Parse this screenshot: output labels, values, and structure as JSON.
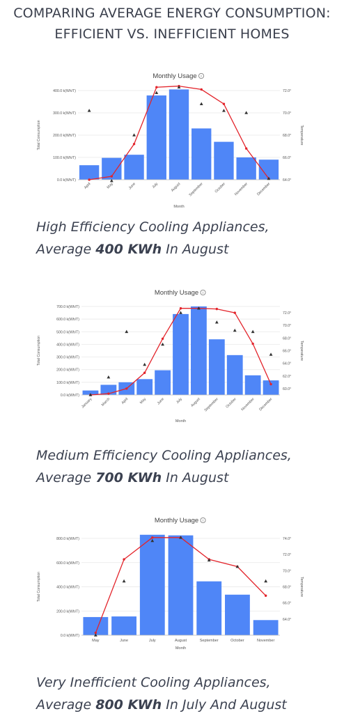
{
  "page": {
    "title_line1": "COMPARING AVERAGE ENERGY CONSUMPTION:",
    "title_line2": "EFFICIENT VS. INEFFICIENT HOMES"
  },
  "captions": [
    {
      "line1": "High Efficiency Cooling Appliances,",
      "pre": "Average ",
      "bold": "400 KWh",
      "post": " In August"
    },
    {
      "line1": "Medium Efficiency Cooling Appliances,",
      "pre": "Average ",
      "bold": "700 KWh",
      "post": " In August"
    },
    {
      "line1": "Very Inefficient Cooling Appliances,",
      "pre": "Average ",
      "bold": "800 KWh",
      "post": " In July And August"
    }
  ],
  "colors": {
    "bar": "#4f86f7",
    "line": "#e3242b",
    "marker": "#333333",
    "grid": "#e6e6e6"
  },
  "chart_data": [
    {
      "type": "bar",
      "title": "Monthly Usage",
      "info_icon": "info-icon",
      "xlabel": "Month",
      "ylabel": "Total Consumption",
      "y2label": "Temperature",
      "categories": [
        "April",
        "May",
        "June",
        "July",
        "August",
        "September",
        "October",
        "November",
        "December"
      ],
      "ylim": [
        0,
        400
      ],
      "yticks": [
        "0.0 k(Wh/T)",
        "100.0 k(Wh/T)",
        "200.0 k(Wh/T)",
        "300.0 k(Wh/T)",
        "400.0 k(Wh/T)"
      ],
      "y2lim": [
        64,
        72
      ],
      "y2ticks": [
        "64.0°",
        "66.0°",
        "68.0°",
        "70.0°",
        "72.0°"
      ],
      "values": [
        65,
        98,
        112,
        378,
        405,
        230,
        170,
        100,
        90
      ],
      "line_values": [
        64.0,
        64.3,
        67.2,
        72.3,
        72.4,
        72.1,
        70.8,
        66.8,
        64.1
      ],
      "marker_values": [
        70.2,
        63.9,
        68.0,
        71.8,
        72.3,
        70.8,
        70.2,
        70.0,
        64.1
      ]
    },
    {
      "type": "bar",
      "title": "Monthly Usage",
      "info_icon": "info-icon",
      "xlabel": "Month",
      "ylabel": "Total Consumption",
      "y2label": "Temperature",
      "categories": [
        "January",
        "March",
        "April",
        "May",
        "June",
        "July",
        "August",
        "September",
        "October",
        "November",
        "December"
      ],
      "ylim": [
        0,
        700
      ],
      "yticks": [
        "0.0 k(Wh/T)",
        "100.0 k(Wh/T)",
        "200.0 k(Wh/T)",
        "300.0 k(Wh/T)",
        "400.0 k(Wh/T)",
        "500.0 k(Wh/T)",
        "600.0 k(Wh/T)",
        "700.0 k(Wh/T)"
      ],
      "y2lim": [
        59,
        73
      ],
      "y2ticks": [
        "60.0°",
        "62.0°",
        "64.0°",
        "66.0°",
        "68.0°",
        "70.0°",
        "72.0°"
      ],
      "values": [
        35,
        80,
        100,
        125,
        195,
        640,
        700,
        440,
        315,
        155,
        115
      ],
      "line_values": [
        59.0,
        59.2,
        60.0,
        62.5,
        67.9,
        72.7,
        72.7,
        72.6,
        72.0,
        67.1,
        60.7
      ],
      "marker_values": [
        59.0,
        61.8,
        69.0,
        63.8,
        67.0,
        72.0,
        72.7,
        70.5,
        69.2,
        69.0,
        65.4
      ]
    },
    {
      "type": "bar",
      "title": "Monthly Usage",
      "info_icon": "info-icon",
      "xlabel": "Month",
      "ylabel": "Total Consumption",
      "y2label": "Temperature",
      "categories": [
        "May",
        "June",
        "July",
        "August",
        "September",
        "October",
        "November"
      ],
      "ylim": [
        0,
        800
      ],
      "yticks": [
        "0.0 k(Wh/T)",
        "200.0 k(Wh/T)",
        "400.0 k(Wh/T)",
        "600.0 k(Wh/T)",
        "800.0 k(Wh/T)"
      ],
      "y2lim": [
        62,
        74
      ],
      "y2ticks": [
        "64.0°",
        "66.0°",
        "68.0°",
        "70.0°",
        "72.0°",
        "74.0°"
      ],
      "values": [
        150,
        155,
        830,
        825,
        445,
        335,
        125
      ],
      "line_values": [
        62.3,
        71.4,
        74.1,
        74.1,
        71.4,
        70.5,
        66.9
      ],
      "marker_values": [
        62.0,
        68.7,
        73.7,
        74.1,
        71.3,
        70.5,
        68.7
      ]
    }
  ]
}
